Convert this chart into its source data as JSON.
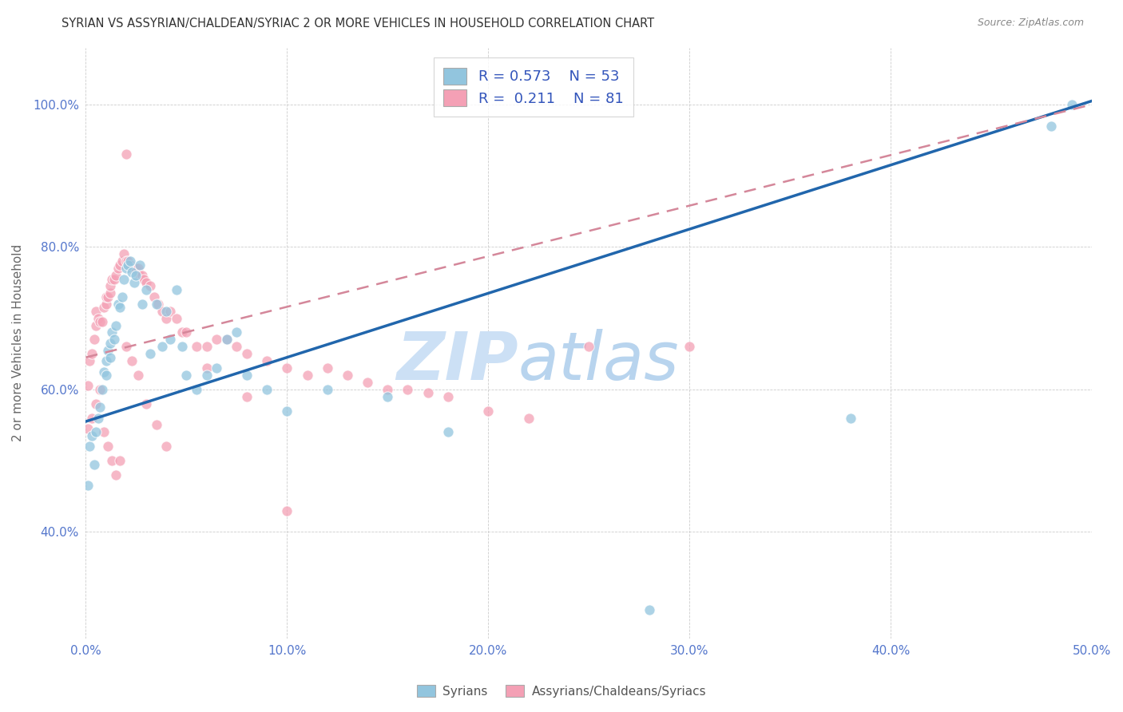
{
  "title": "SYRIAN VS ASSYRIAN/CHALDEAN/SYRIAC 2 OR MORE VEHICLES IN HOUSEHOLD CORRELATION CHART",
  "source": "Source: ZipAtlas.com",
  "ylabel": "2 or more Vehicles in Household",
  "xlim": [
    0.0,
    0.5
  ],
  "ylim": [
    0.25,
    1.08
  ],
  "xtick_labels": [
    "0.0%",
    "10.0%",
    "20.0%",
    "30.0%",
    "40.0%",
    "50.0%"
  ],
  "xtick_values": [
    0.0,
    0.1,
    0.2,
    0.3,
    0.4,
    0.5
  ],
  "ytick_labels": [
    "40.0%",
    "60.0%",
    "80.0%",
    "100.0%"
  ],
  "ytick_values": [
    0.4,
    0.6,
    0.8,
    1.0
  ],
  "blue_R": 0.573,
  "blue_N": 53,
  "pink_R": 0.211,
  "pink_N": 81,
  "blue_color": "#92c5de",
  "pink_color": "#f4a0b5",
  "trend_blue_color": "#2166ac",
  "trend_pink_color": "#d4879a",
  "grid_color": "#cccccc",
  "background_color": "#ffffff",
  "watermark_zip_color": "#cce0f5",
  "watermark_atlas_color": "#b8d4ee",
  "blue_trend_x0": 0.0,
  "blue_trend_y0": 0.555,
  "blue_trend_x1": 0.5,
  "blue_trend_y1": 1.005,
  "pink_trend_x0": 0.0,
  "pink_trend_y0": 0.645,
  "pink_trend_x1": 0.5,
  "pink_trend_y1": 1.0,
  "blue_scatter_x": [
    0.001,
    0.002,
    0.003,
    0.004,
    0.005,
    0.006,
    0.007,
    0.008,
    0.009,
    0.01,
    0.01,
    0.011,
    0.012,
    0.012,
    0.013,
    0.014,
    0.015,
    0.016,
    0.017,
    0.018,
    0.019,
    0.02,
    0.021,
    0.022,
    0.023,
    0.024,
    0.025,
    0.027,
    0.028,
    0.03,
    0.032,
    0.035,
    0.038,
    0.04,
    0.042,
    0.045,
    0.048,
    0.05,
    0.055,
    0.06,
    0.065,
    0.07,
    0.075,
    0.08,
    0.09,
    0.1,
    0.12,
    0.15,
    0.18,
    0.28,
    0.38,
    0.48,
    0.49
  ],
  "blue_scatter_y": [
    0.465,
    0.52,
    0.535,
    0.495,
    0.54,
    0.56,
    0.575,
    0.6,
    0.625,
    0.62,
    0.64,
    0.655,
    0.665,
    0.645,
    0.68,
    0.67,
    0.69,
    0.72,
    0.715,
    0.73,
    0.755,
    0.77,
    0.775,
    0.78,
    0.765,
    0.75,
    0.76,
    0.775,
    0.72,
    0.74,
    0.65,
    0.72,
    0.66,
    0.71,
    0.67,
    0.74,
    0.66,
    0.62,
    0.6,
    0.62,
    0.63,
    0.67,
    0.68,
    0.62,
    0.6,
    0.57,
    0.6,
    0.59,
    0.54,
    0.29,
    0.56,
    0.97,
    1.0
  ],
  "pink_scatter_x": [
    0.001,
    0.002,
    0.003,
    0.004,
    0.005,
    0.005,
    0.006,
    0.007,
    0.008,
    0.009,
    0.01,
    0.01,
    0.011,
    0.012,
    0.012,
    0.013,
    0.014,
    0.015,
    0.016,
    0.017,
    0.018,
    0.019,
    0.02,
    0.021,
    0.022,
    0.023,
    0.024,
    0.025,
    0.026,
    0.027,
    0.028,
    0.029,
    0.03,
    0.032,
    0.034,
    0.036,
    0.038,
    0.04,
    0.042,
    0.045,
    0.048,
    0.05,
    0.055,
    0.06,
    0.065,
    0.07,
    0.075,
    0.08,
    0.09,
    0.1,
    0.11,
    0.12,
    0.13,
    0.14,
    0.15,
    0.16,
    0.17,
    0.18,
    0.2,
    0.22,
    0.25,
    0.001,
    0.003,
    0.005,
    0.007,
    0.009,
    0.011,
    0.013,
    0.015,
    0.017,
    0.02,
    0.023,
    0.026,
    0.03,
    0.035,
    0.04,
    0.06,
    0.08,
    0.1,
    0.3,
    0.02
  ],
  "pink_scatter_y": [
    0.605,
    0.64,
    0.65,
    0.67,
    0.69,
    0.71,
    0.7,
    0.695,
    0.695,
    0.715,
    0.72,
    0.73,
    0.73,
    0.735,
    0.745,
    0.755,
    0.755,
    0.76,
    0.77,
    0.775,
    0.78,
    0.79,
    0.78,
    0.78,
    0.775,
    0.77,
    0.77,
    0.77,
    0.77,
    0.76,
    0.76,
    0.755,
    0.75,
    0.745,
    0.73,
    0.72,
    0.71,
    0.7,
    0.71,
    0.7,
    0.68,
    0.68,
    0.66,
    0.66,
    0.67,
    0.67,
    0.66,
    0.65,
    0.64,
    0.63,
    0.62,
    0.63,
    0.62,
    0.61,
    0.6,
    0.6,
    0.595,
    0.59,
    0.57,
    0.56,
    0.66,
    0.545,
    0.56,
    0.58,
    0.6,
    0.54,
    0.52,
    0.5,
    0.48,
    0.5,
    0.66,
    0.64,
    0.62,
    0.58,
    0.55,
    0.52,
    0.63,
    0.59,
    0.43,
    0.66,
    0.93
  ]
}
